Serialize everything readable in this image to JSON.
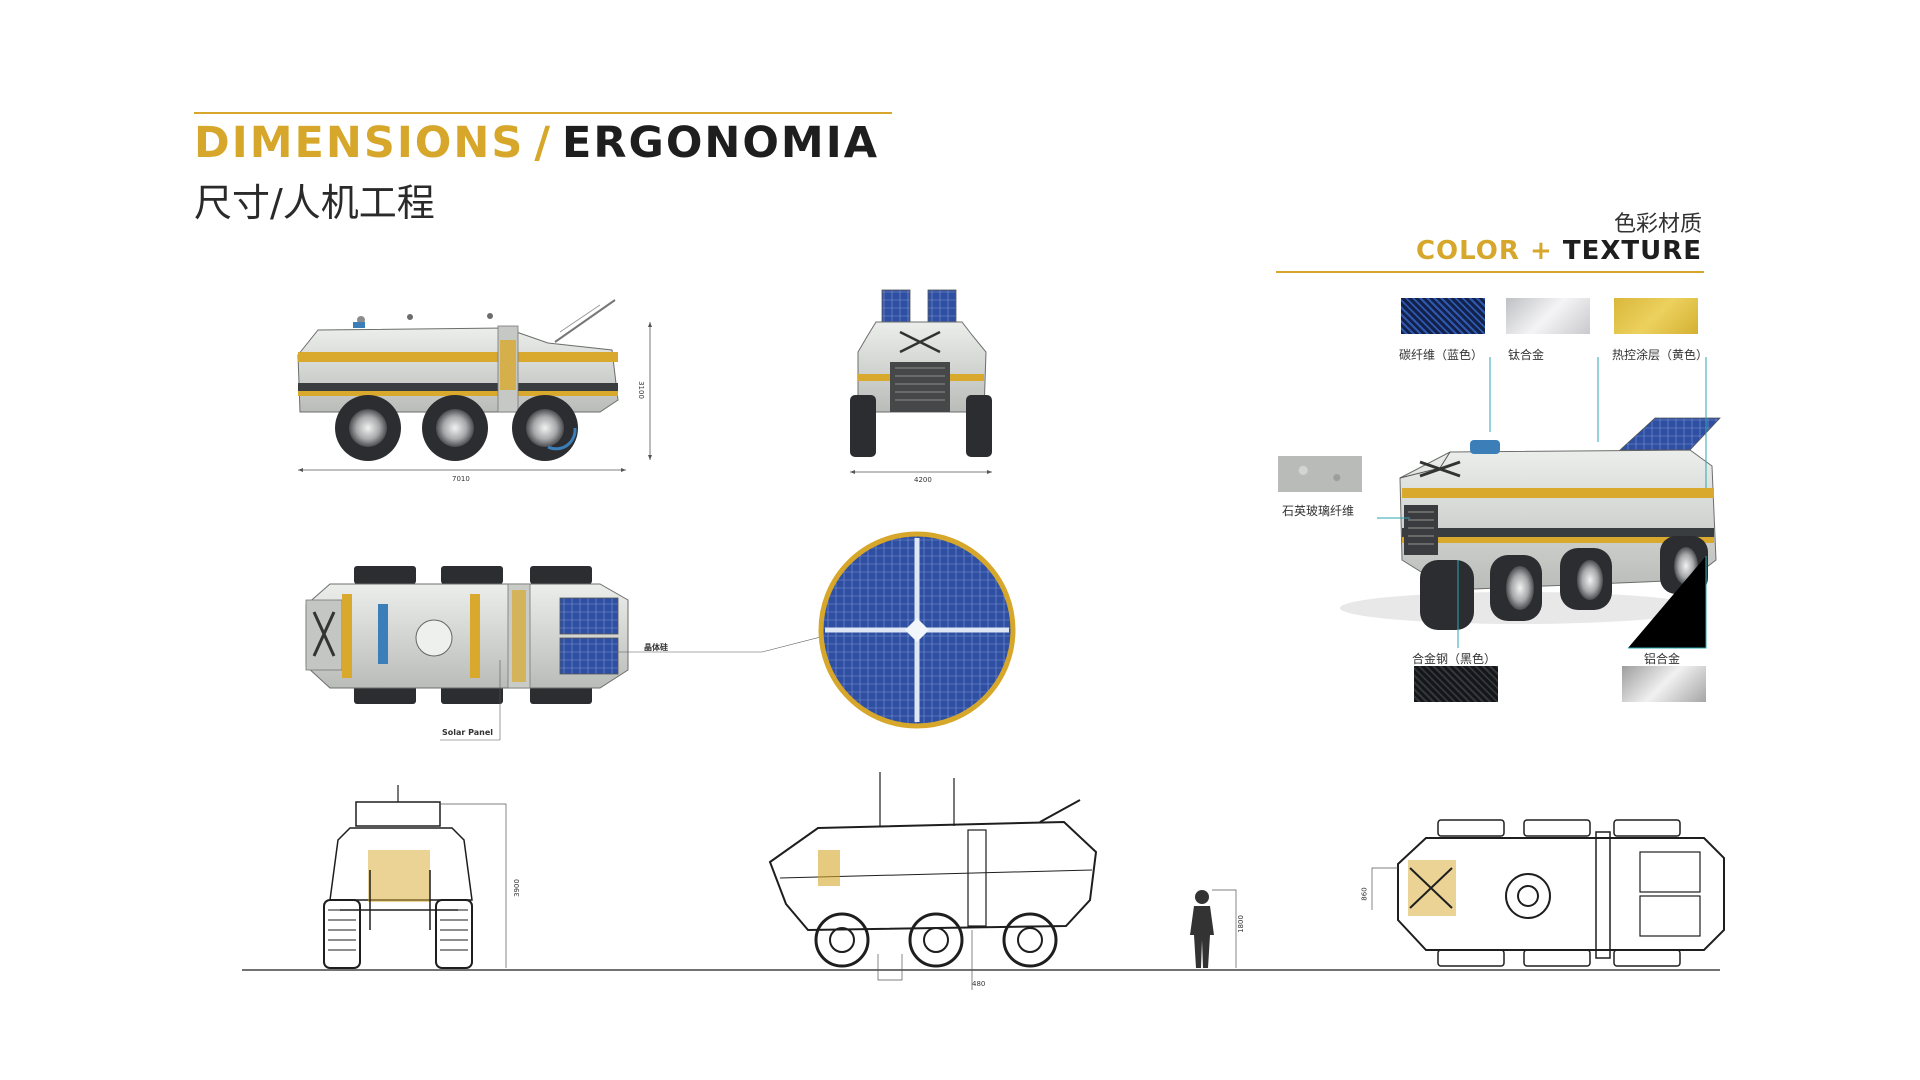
{
  "header": {
    "title_en_gold": "DIMENSIONS",
    "title_en_slash": "/",
    "title_en_dark": "ERGONOMIA",
    "title_cn": "尺寸/人机工程"
  },
  "color_texture": {
    "title_cn": "色彩材质",
    "title_en_gold": "COLOR +",
    "title_en_dark": "TEXTURE",
    "materials": [
      {
        "label": "碳纤维（蓝色）",
        "color": "#1a2c5a"
      },
      {
        "label": "钛合金",
        "color": "#d8d8dc"
      },
      {
        "label": "热控涂层（黄色）",
        "color": "#e2c246"
      },
      {
        "label": "石英玻璃纤维",
        "color": "#b9bbb8"
      },
      {
        "label": "合金钢（黑色）",
        "color": "#1b1c20"
      },
      {
        "label": "铝合金",
        "color": "#c7c7c7"
      }
    ]
  },
  "dimensions": {
    "side_length": "7010",
    "side_height": "3100",
    "front_width": "4200",
    "front_height": "3900",
    "seat_gap": "480",
    "human_height": "1800",
    "top_seat": "860"
  },
  "callouts": {
    "solar_panel": "Solar Panel",
    "solar_cn": "晶体硅"
  },
  "colors": {
    "accent": "#d6a72a",
    "dark": "#1e1e1e",
    "vehicle_body": "#d3d5d2",
    "vehicle_stripe": "#d9a92e",
    "solar_blue": "#2f4fa3",
    "callout_line": "#2aa7b0"
  }
}
